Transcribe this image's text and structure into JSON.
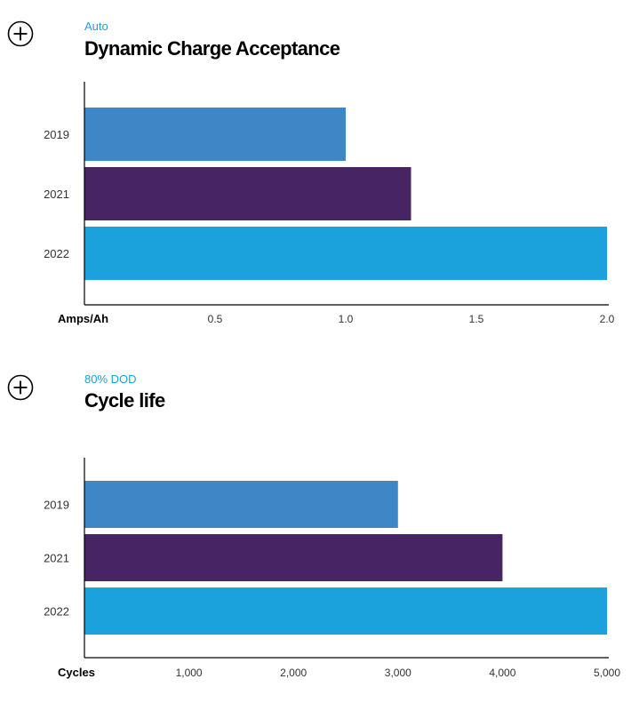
{
  "charts": [
    {
      "subtitle": "Auto",
      "title": "Dynamic Charge Acceptance",
      "expand_label": "expand-chart",
      "chart_data": {
        "type": "bar",
        "orientation": "horizontal",
        "title": "Dynamic Charge Acceptance",
        "subtitle": "Auto",
        "categories": [
          "2019",
          "2021",
          "2022"
        ],
        "values": [
          1.0,
          1.25,
          2.0
        ],
        "colors": [
          "#3f86c6",
          "#472565",
          "#1ba2dd"
        ],
        "xlabel": "Amps/Ah",
        "xlim": [
          0,
          2.0
        ],
        "xticks": [
          0.5,
          1.0,
          1.5,
          2.0
        ],
        "xtick_labels": [
          "0.5",
          "1.0",
          "1.5",
          "2.0"
        ],
        "grid": false
      }
    },
    {
      "subtitle": "80% DOD",
      "title": "Cycle life",
      "expand_label": "expand-chart",
      "chart_data": {
        "type": "bar",
        "orientation": "horizontal",
        "title": "Cycle life",
        "subtitle": "80% DOD",
        "categories": [
          "2019",
          "2021",
          "2022"
        ],
        "values": [
          3000,
          4000,
          5000
        ],
        "colors": [
          "#3f86c6",
          "#472565",
          "#1ba2dd"
        ],
        "xlabel": "Cycles",
        "xlim": [
          0,
          5000
        ],
        "xticks": [
          1000,
          2000,
          3000,
          4000,
          5000
        ],
        "xtick_labels": [
          "1,000",
          "2,000",
          "3,000",
          "4,000",
          "5,000"
        ],
        "grid": false
      }
    }
  ]
}
